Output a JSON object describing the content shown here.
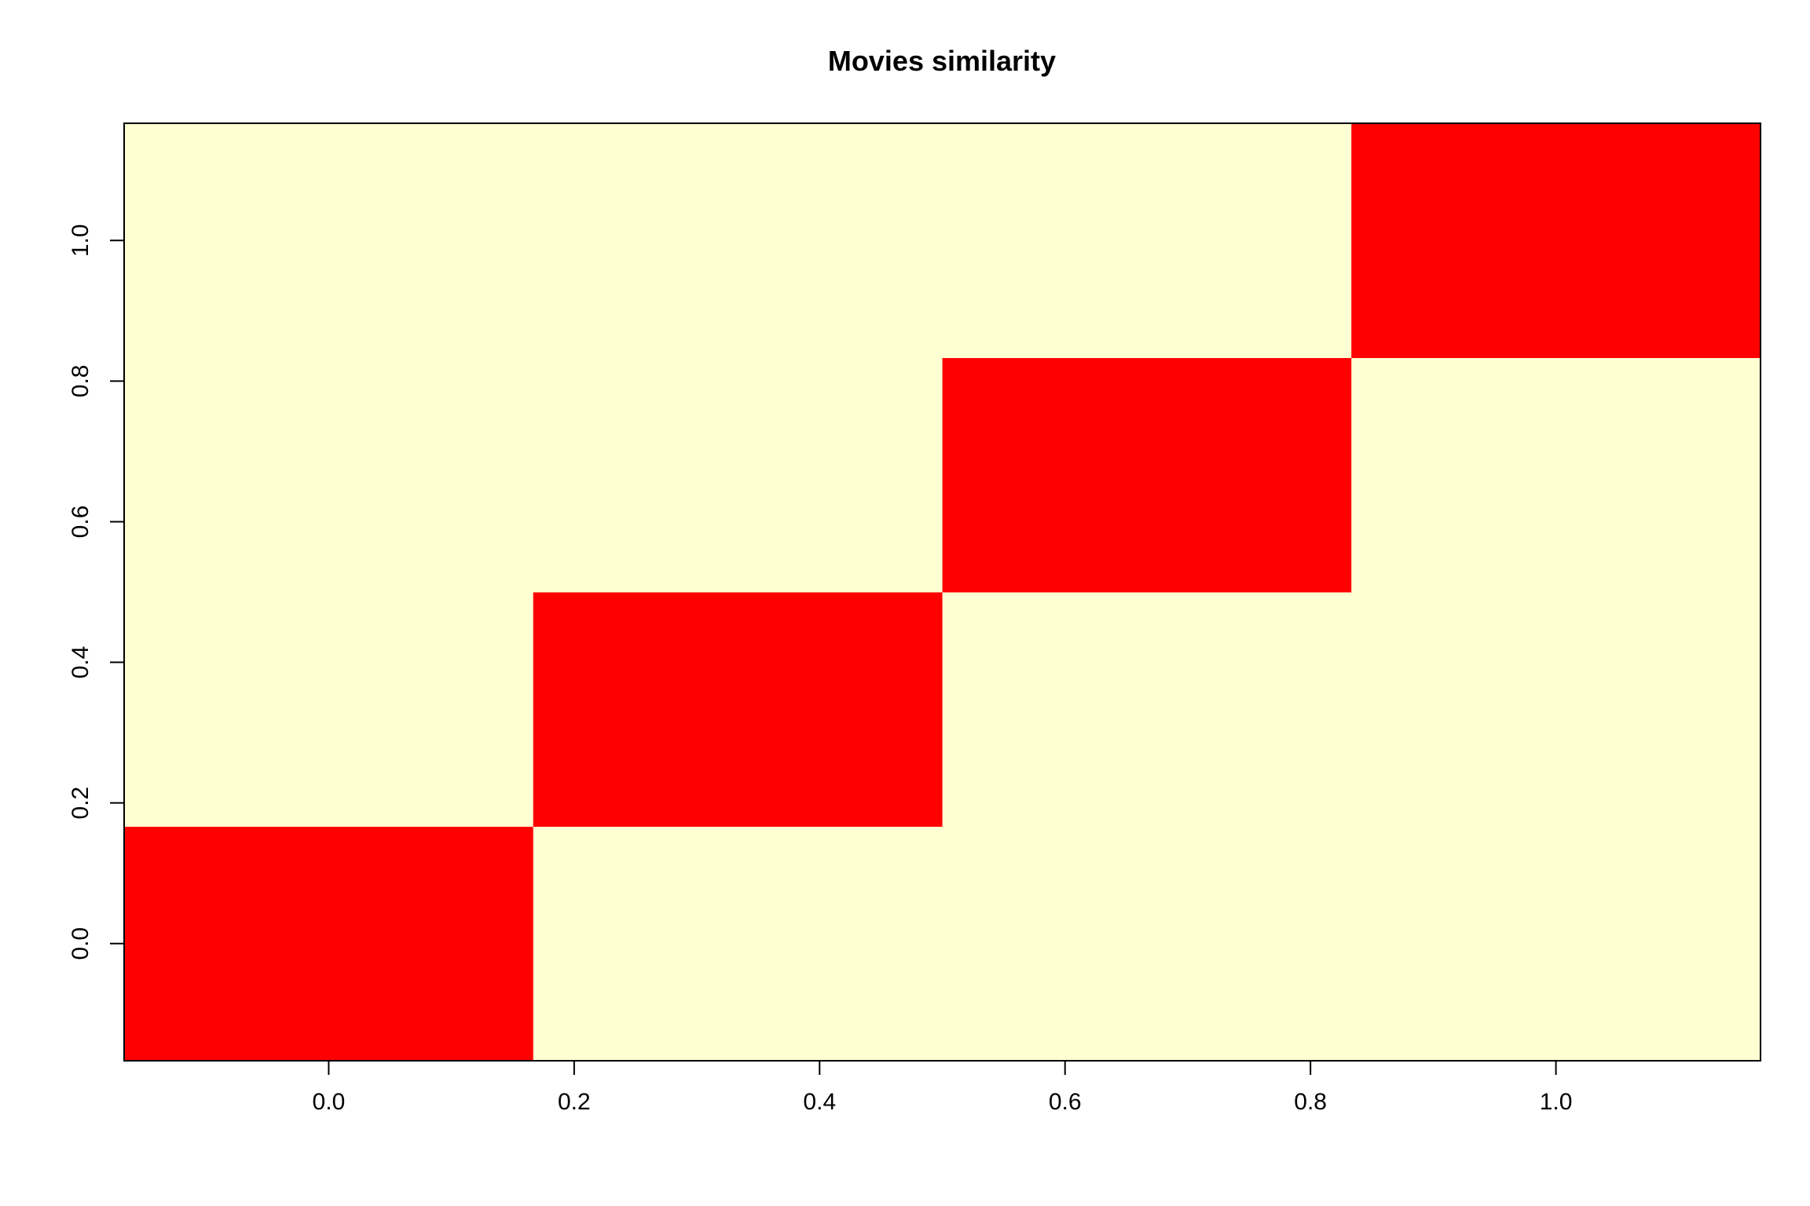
{
  "chart_data": {
    "type": "heatmap",
    "title": "Movies similarity",
    "xlabel": "",
    "ylabel": "",
    "xlim": [
      -0.1667,
      1.1667
    ],
    "ylim": [
      -0.1667,
      1.1667
    ],
    "x_ticks": [
      "0.0",
      "0.2",
      "0.4",
      "0.6",
      "0.8",
      "1.0"
    ],
    "y_ticks": [
      "0.0",
      "0.2",
      "0.4",
      "0.6",
      "0.8",
      "1.0"
    ],
    "cell_centers_x": [
      0.0,
      0.3333,
      0.6667,
      1.0
    ],
    "cell_centers_y": [
      0.0,
      0.3333,
      0.6667,
      1.0
    ],
    "values": [
      [
        1,
        0,
        0,
        0
      ],
      [
        0,
        1,
        0,
        0
      ],
      [
        0,
        0,
        1,
        0
      ],
      [
        0,
        0,
        0,
        1
      ]
    ],
    "colors": {
      "high": "#ff0000",
      "low": "#ffffd4"
    },
    "grid": false,
    "legend": "none"
  }
}
